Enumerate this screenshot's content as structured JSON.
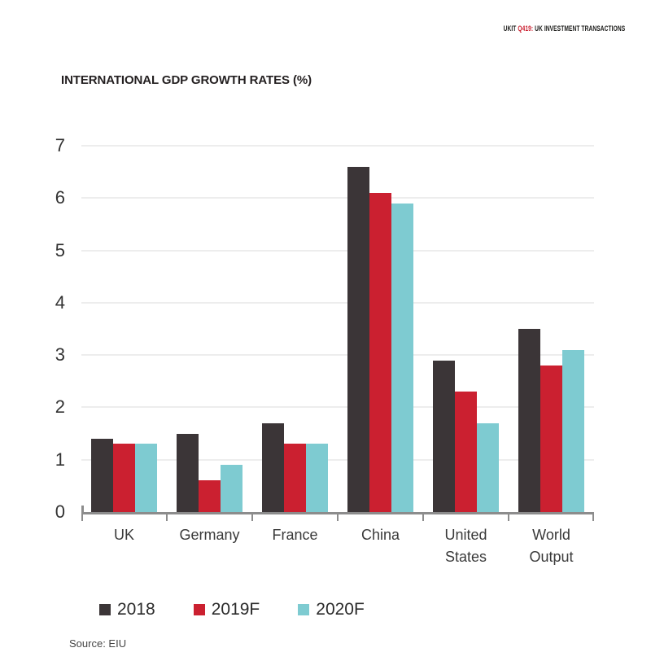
{
  "header": {
    "prefix": "UKIT ",
    "issue": "Q419:",
    "rest": " UK INVESTMENT TRANSACTIONS",
    "issue_color": "#cb2030"
  },
  "chart_data": {
    "type": "bar",
    "title": "INTERNATIONAL GDP GROWTH RATES (%)",
    "categories": [
      "UK",
      "Germany",
      "France",
      "China",
      "United States",
      "World Output"
    ],
    "category_lines": [
      [
        "UK"
      ],
      [
        "Germany"
      ],
      [
        "France"
      ],
      [
        "China"
      ],
      [
        "United",
        "States"
      ],
      [
        "World",
        "Output"
      ]
    ],
    "series": [
      {
        "name": "2018",
        "color": "#3b3537",
        "values": [
          1.4,
          1.5,
          1.7,
          6.6,
          2.9,
          3.5
        ]
      },
      {
        "name": "2019F",
        "color": "#cb2030",
        "values": [
          1.3,
          0.6,
          1.3,
          6.1,
          2.3,
          2.8
        ]
      },
      {
        "name": "2020F",
        "color": "#7ecbd1",
        "values": [
          1.3,
          0.9,
          1.3,
          5.9,
          1.7,
          3.1
        ]
      }
    ],
    "xlabel": "",
    "ylabel": "",
    "ylim": [
      0,
      7
    ],
    "ytick_interval": 1,
    "yticks": [
      0,
      1,
      2,
      3,
      4,
      5,
      6,
      7
    ],
    "grid": true,
    "grid_color": "#ededed",
    "axis_color": "#8c8c8c",
    "legend_position": "bottom"
  },
  "source": "Source: EIU"
}
